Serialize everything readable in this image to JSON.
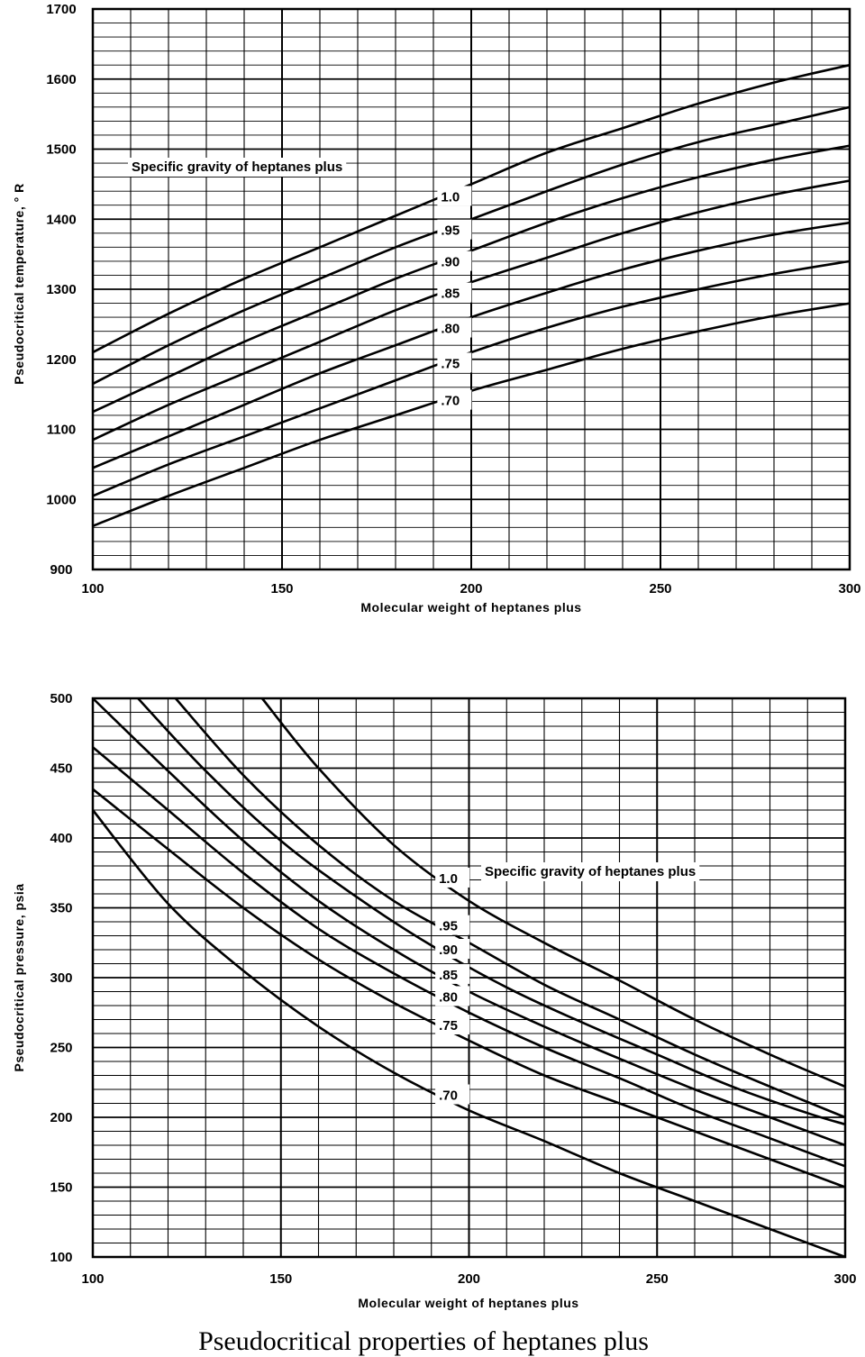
{
  "caption": "Pseudocritical properties of heptanes plus",
  "chart_data": [
    {
      "type": "line",
      "ylabel": "Pseudocritical temperature, ° R",
      "xlabel": "Molecular weight of heptanes plus",
      "xlim": [
        100,
        300
      ],
      "ylim": [
        900,
        1700
      ],
      "x_ticks": [
        "100",
        "150",
        "200",
        "250",
        "300"
      ],
      "y_ticks": [
        "900",
        "1000",
        "1100",
        "1200",
        "1300",
        "1400",
        "1500",
        "1600",
        "1700"
      ],
      "grid": true,
      "legend_title": "Specific gravity of heptanes plus",
      "x": [
        100,
        120,
        140,
        160,
        180,
        200,
        220,
        240,
        260,
        280,
        300
      ],
      "series": [
        {
          "name": "1.0",
          "values": [
            1210,
            1265,
            1315,
            1360,
            1405,
            1450,
            1495,
            1530,
            1565,
            1595,
            1620
          ]
        },
        {
          "name": ".95",
          "values": [
            1165,
            1220,
            1270,
            1315,
            1360,
            1400,
            1440,
            1478,
            1510,
            1535,
            1560
          ]
        },
        {
          "name": ".90",
          "values": [
            1125,
            1175,
            1225,
            1270,
            1315,
            1355,
            1395,
            1430,
            1460,
            1485,
            1505
          ]
        },
        {
          "name": ".85",
          "values": [
            1085,
            1135,
            1180,
            1225,
            1270,
            1310,
            1345,
            1380,
            1410,
            1435,
            1455
          ]
        },
        {
          "name": ".80",
          "values": [
            1045,
            1090,
            1135,
            1180,
            1220,
            1260,
            1295,
            1328,
            1355,
            1378,
            1395
          ]
        },
        {
          "name": ".75",
          "values": [
            1005,
            1050,
            1090,
            1130,
            1170,
            1210,
            1245,
            1275,
            1300,
            1322,
            1340
          ]
        },
        {
          "name": ".70",
          "values": [
            962,
            1005,
            1045,
            1085,
            1120,
            1155,
            1185,
            1215,
            1240,
            1262,
            1280
          ]
        }
      ]
    },
    {
      "type": "line",
      "ylabel": "Pseudocritical pressure, psia",
      "xlabel": "Molecular weight of heptanes plus",
      "xlim": [
        100,
        300
      ],
      "ylim": [
        100,
        500
      ],
      "x_ticks": [
        "100",
        "150",
        "200",
        "250",
        "300"
      ],
      "y_ticks": [
        "100",
        "150",
        "200",
        "250",
        "300",
        "350",
        "400",
        "450",
        "500"
      ],
      "grid": true,
      "legend_title": "Specific gravity of heptanes plus",
      "series": [
        {
          "name": "1.0",
          "x": [
            145,
            160,
            180,
            200,
            220,
            240,
            260,
            280,
            300
          ],
          "values": [
            500,
            450,
            395,
            355,
            325,
            298,
            270,
            245,
            222
          ]
        },
        {
          "name": ".95",
          "x": [
            122,
            140,
            160,
            180,
            200,
            220,
            240,
            260,
            280,
            300
          ],
          "values": [
            500,
            445,
            395,
            355,
            325,
            295,
            270,
            245,
            222,
            200
          ]
        },
        {
          "name": ".90",
          "x": [
            112,
            130,
            150,
            170,
            190,
            210,
            230,
            250,
            270,
            290,
            300
          ],
          "values": [
            500,
            448,
            398,
            358,
            323,
            293,
            268,
            245,
            222,
            203,
            195
          ]
        },
        {
          "name": ".85",
          "x": [
            100,
            120,
            140,
            160,
            180,
            200,
            220,
            240,
            260,
            280,
            300
          ],
          "values": [
            500,
            448,
            398,
            355,
            320,
            290,
            265,
            242,
            220,
            200,
            180
          ]
        },
        {
          "name": ".80",
          "x": [
            100,
            120,
            140,
            160,
            180,
            200,
            220,
            240,
            260,
            280,
            300
          ],
          "values": [
            465,
            420,
            375,
            335,
            303,
            275,
            250,
            228,
            205,
            185,
            165
          ]
        },
        {
          "name": ".75",
          "x": [
            100,
            120,
            140,
            160,
            180,
            200,
            220,
            240,
            260,
            280,
            300
          ],
          "values": [
            435,
            392,
            350,
            313,
            282,
            255,
            230,
            210,
            190,
            170,
            150
          ]
        },
        {
          "name": ".70",
          "x": [
            100,
            120,
            140,
            160,
            180,
            200,
            220,
            240,
            260,
            280,
            300
          ],
          "values": [
            420,
            353,
            305,
            265,
            232,
            205,
            183,
            160,
            140,
            120,
            100
          ]
        }
      ]
    }
  ]
}
